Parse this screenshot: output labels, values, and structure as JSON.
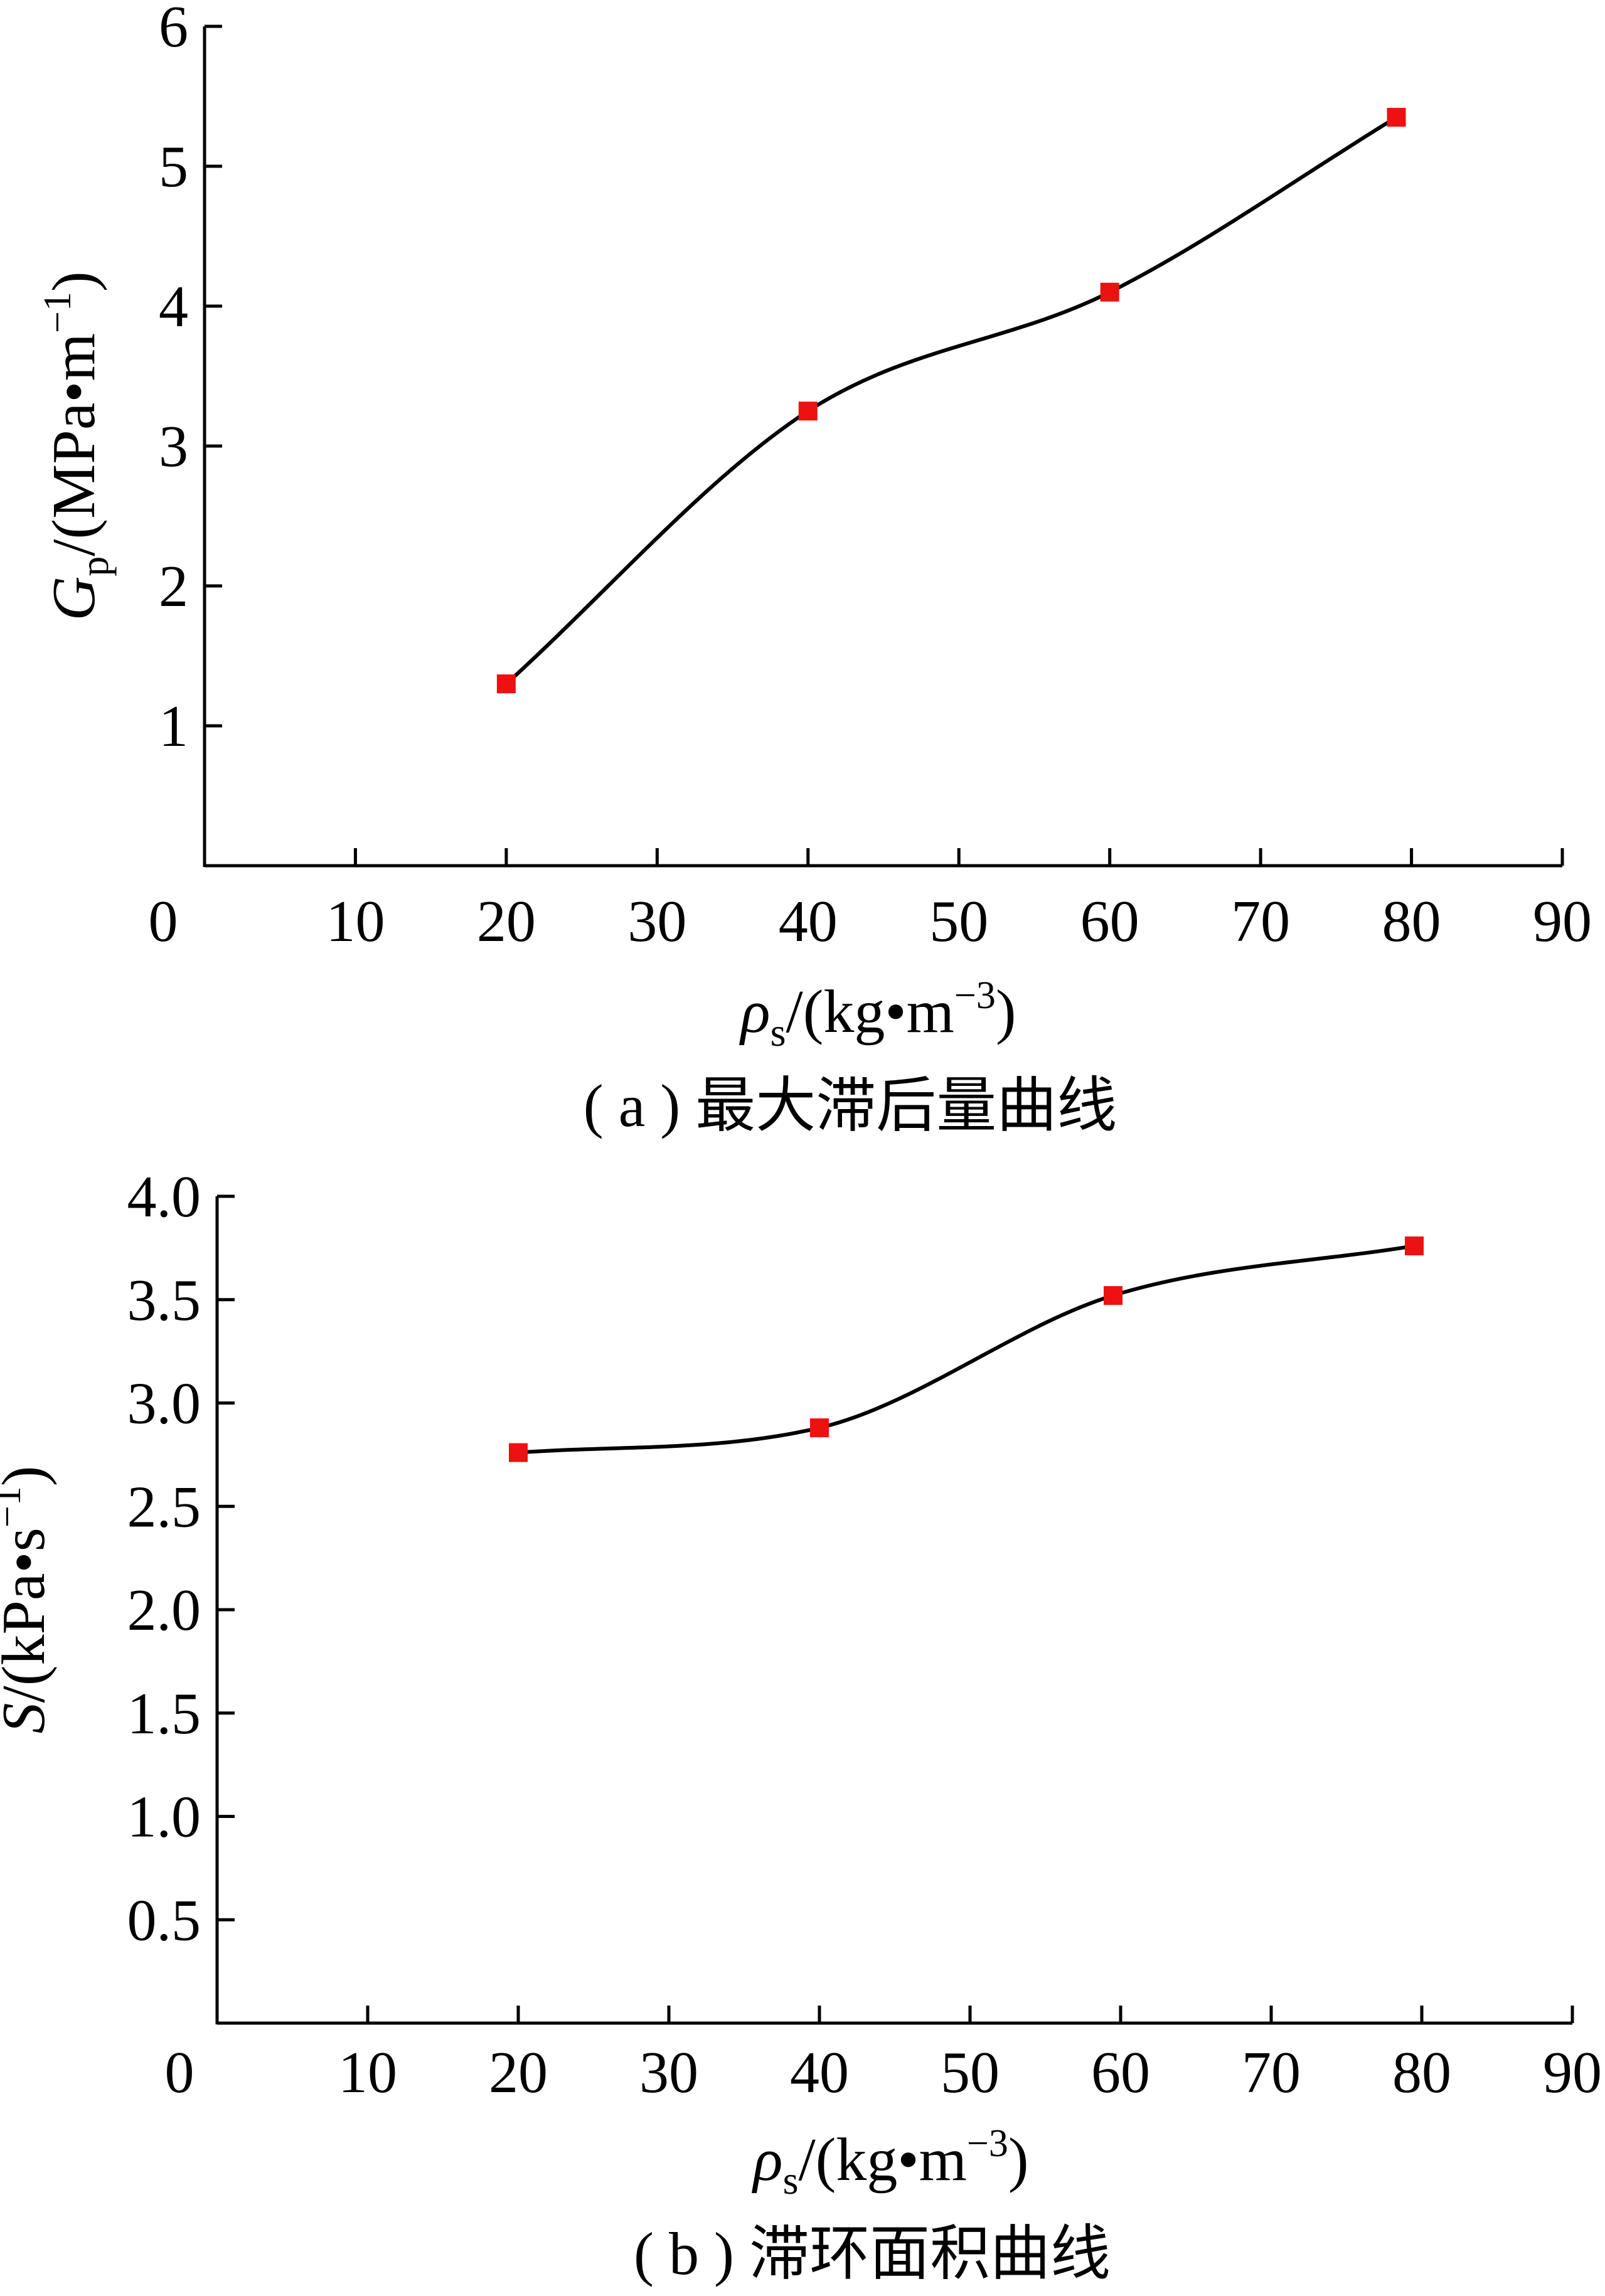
{
  "chart_data": [
    {
      "type": "line",
      "caption": "( a ) 最大滞后量曲线",
      "xlabel": {
        "symbol": "ρ",
        "sub": "s",
        "unit": "/(kg•m",
        "exp": "−3",
        "close": ")"
      },
      "ylabel": {
        "symbol": "G",
        "sub": "p",
        "unit": "/(MPa•m",
        "exp": "−1",
        "close": ")"
      },
      "xlim": [
        0,
        90
      ],
      "ylim": [
        0,
        6
      ],
      "x_ticks": [
        10,
        20,
        30,
        40,
        50,
        60,
        70,
        80,
        90
      ],
      "x_tick_labels": [
        "10",
        "20",
        "30",
        "40",
        "50",
        "60",
        "70",
        "80",
        "90"
      ],
      "y_ticks": [
        1,
        2,
        3,
        4,
        5,
        6
      ],
      "y_tick_labels": [
        "1",
        "2",
        "3",
        "4",
        "5",
        "6"
      ],
      "origin_label": "0",
      "series": [
        {
          "x": [
            20,
            40,
            60,
            79
          ],
          "values": [
            1.3,
            3.25,
            4.1,
            5.35
          ],
          "color": "#ee1111",
          "line_color": "#000000"
        }
      ],
      "grid": false,
      "legend": "none"
    },
    {
      "type": "line",
      "caption": "( b ) 滞环面积曲线",
      "xlabel": {
        "symbol": "ρ",
        "sub": "s",
        "unit": "/(kg•m",
        "exp": "−3",
        "close": ")"
      },
      "ylabel": {
        "symbol": "S",
        "sub": "",
        "unit": "/(kPa•s",
        "exp": "−1",
        "close": ")"
      },
      "xlim": [
        0,
        90
      ],
      "ylim": [
        0,
        4.0
      ],
      "x_ticks": [
        10,
        20,
        30,
        40,
        50,
        60,
        70,
        80,
        90
      ],
      "x_tick_labels": [
        "10",
        "20",
        "30",
        "40",
        "50",
        "60",
        "70",
        "80",
        "90"
      ],
      "y_ticks": [
        0.5,
        1.0,
        1.5,
        2.0,
        2.5,
        3.0,
        3.5,
        4.0
      ],
      "y_tick_labels": [
        "0.5",
        "1.0",
        "1.5",
        "2.0",
        "2.5",
        "3.0",
        "3.5",
        "4.0"
      ],
      "origin_label": "0",
      "series": [
        {
          "x": [
            20,
            40,
            59.5,
            79.5
          ],
          "values": [
            2.76,
            2.88,
            3.52,
            3.76
          ],
          "color": "#ee1111",
          "line_color": "#000000"
        }
      ],
      "grid": false,
      "legend": "none"
    }
  ]
}
